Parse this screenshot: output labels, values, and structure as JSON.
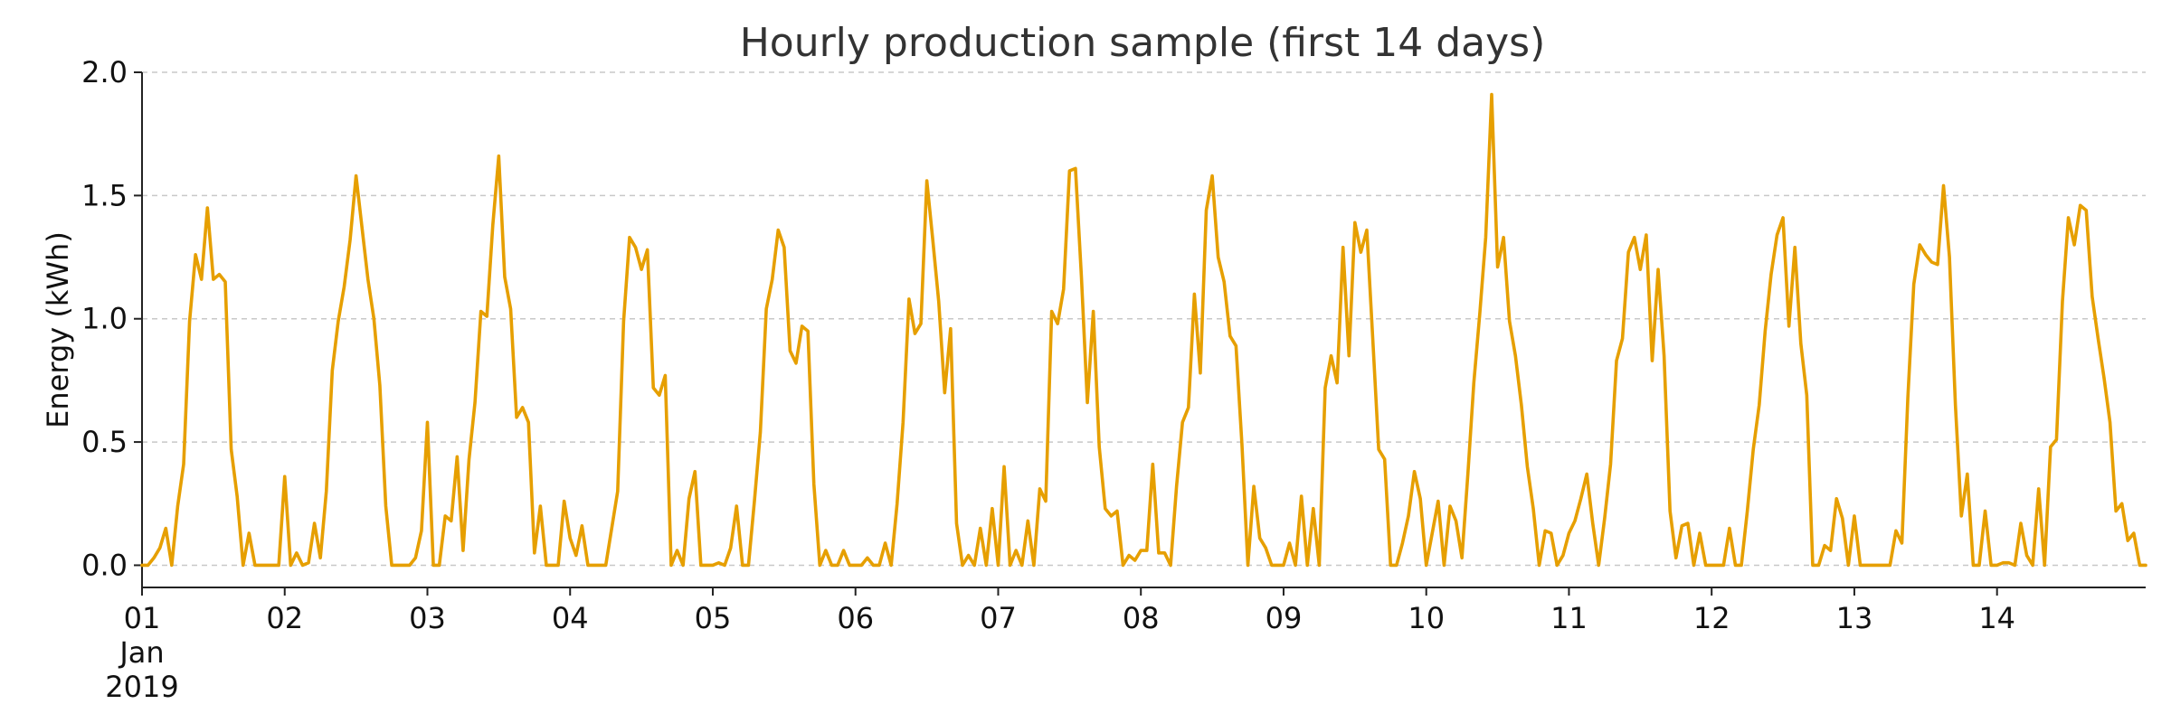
{
  "chart_data": {
    "type": "line",
    "title": "Hourly production sample (first 14 days)",
    "xlabel": "",
    "ylabel": "Energy (kWh)",
    "ylim": [
      -0.09,
      2.0
    ],
    "yticks": [
      0.0,
      0.5,
      1.0,
      1.5,
      2.0
    ],
    "ytick_labels": [
      "0.0",
      "0.5",
      "1.0",
      "1.5",
      "2.0"
    ],
    "xlim": [
      "2019-01-01 00:00",
      "2019-01-14 23:00"
    ],
    "xtick_labels": [
      "01",
      "02",
      "03",
      "04",
      "05",
      "06",
      "07",
      "08",
      "09",
      "10",
      "11",
      "12",
      "13",
      "14"
    ],
    "xtick_sublabel": [
      "Jan",
      "2019"
    ],
    "grid": "horizontal dashed",
    "line_color": "#E69F00",
    "series": [
      {
        "x_start": "2019-01-01 00:00",
        "x_step": "1 hour",
        "values": [
          0,
          0,
          0.03,
          0.07,
          0.15,
          0,
          0.24,
          0.41,
          0.99,
          1.26,
          1.16,
          1.45,
          1.16,
          1.18,
          1.15,
          0.47,
          0.28,
          0,
          0.13,
          0,
          0,
          0,
          0,
          0,
          0.36,
          0,
          0.05,
          0,
          0.01,
          0.17,
          0.03,
          0.3,
          0.79,
          0.99,
          1.13,
          1.32,
          1.58,
          1.37,
          1.16,
          1.0,
          0.73,
          0.24,
          0,
          0,
          0,
          0,
          0.03,
          0.14,
          0.58,
          0,
          0,
          0.2,
          0.18,
          0.44,
          0.06,
          0.43,
          0.66,
          1.03,
          1.01,
          1.38,
          1.66,
          1.17,
          1.04,
          0.6,
          0.64,
          0.58,
          0.05,
          0.24,
          0,
          0,
          0,
          0.26,
          0.11,
          0.04,
          0.16,
          0,
          0,
          0,
          0,
          0.15,
          0.3,
          0.99,
          1.33,
          1.29,
          1.2,
          1.28,
          0.72,
          0.69,
          0.77,
          0,
          0.06,
          0,
          0.27,
          0.38,
          0,
          0,
          0,
          0.01,
          0,
          0.07,
          0.24,
          0,
          0,
          0.26,
          0.54,
          1.04,
          1.16,
          1.36,
          1.29,
          0.87,
          0.82,
          0.97,
          0.95,
          0.33,
          0,
          0.06,
          0,
          0,
          0.06,
          0,
          0,
          0,
          0.03,
          0,
          0,
          0.09,
          0,
          0.25,
          0.58,
          1.08,
          0.94,
          0.98,
          1.56,
          1.32,
          1.07,
          0.7,
          0.96,
          0.17,
          0,
          0.04,
          0,
          0.15,
          0,
          0.23,
          0,
          0.4,
          0,
          0.06,
          0,
          0.18,
          0,
          0.31,
          0.26,
          1.03,
          0.98,
          1.12,
          1.6,
          1.61,
          1.17,
          0.66,
          1.03,
          0.48,
          0.23,
          0.2,
          0.22,
          0,
          0.04,
          0.02,
          0.06,
          0.06,
          0.41,
          0.05,
          0.05,
          0,
          0.32,
          0.58,
          0.64,
          1.1,
          0.78,
          1.44,
          1.58,
          1.25,
          1.15,
          0.93,
          0.89,
          0.49,
          0,
          0.32,
          0.11,
          0.07,
          0,
          0,
          0,
          0.09,
          0,
          0.28,
          0,
          0.23,
          0,
          0.72,
          0.85,
          0.74,
          1.29,
          0.85,
          1.39,
          1.27,
          1.36,
          0.92,
          0.47,
          0.43,
          0,
          0,
          0.09,
          0.2,
          0.38,
          0.27,
          0,
          0.13,
          0.26,
          0,
          0.24,
          0.18,
          0.03,
          0.37,
          0.74,
          1.02,
          1.33,
          1.91,
          1.21,
          1.33,
          0.99,
          0.85,
          0.65,
          0.4,
          0.23,
          0,
          0.14,
          0.13,
          0,
          0.04,
          0.13,
          0.18,
          0.27,
          0.37,
          0.17,
          0,
          0.19,
          0.41,
          0.83,
          0.92,
          1.27,
          1.33,
          1.2,
          1.34,
          0.83,
          1.2,
          0.85,
          0.22,
          0.03,
          0.16,
          0.17,
          0,
          0.13,
          0,
          0,
          0,
          0,
          0.15,
          0,
          0,
          0.22,
          0.47,
          0.65,
          0.95,
          1.18,
          1.34,
          1.41,
          0.97,
          1.29,
          0.9,
          0.69,
          0,
          0,
          0.08,
          0.06,
          0.27,
          0.19,
          0,
          0.2,
          0,
          0,
          0,
          0,
          0,
          0,
          0.14,
          0.09,
          0.68,
          1.14,
          1.3,
          1.26,
          1.23,
          1.22,
          1.54,
          1.25,
          0.65,
          0.2,
          0.37,
          0,
          0,
          0.22,
          0,
          0,
          0.01,
          0.01,
          0,
          0.17,
          0.04,
          0,
          0.31,
          0,
          0.48,
          0.51,
          1.07,
          1.41,
          1.3,
          1.46,
          1.44,
          1.09,
          0.92,
          0.76,
          0.58,
          0.22,
          0.25,
          0.1,
          0.13,
          0,
          0
        ]
      }
    ]
  }
}
